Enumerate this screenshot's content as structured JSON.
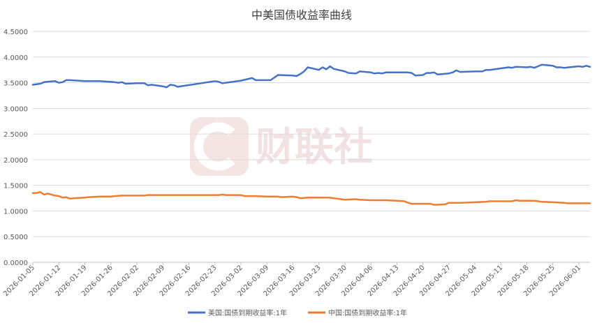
{
  "chart_data": {
    "type": "line",
    "title": "中美国债收益率曲线",
    "xlabel": "",
    "ylabel": "",
    "ylim": [
      0,
      4.5
    ],
    "yticks": [
      "0.0000",
      "0.5000",
      "1.0000",
      "1.5000",
      "2.0000",
      "2.5000",
      "3.0000",
      "3.5000",
      "4.0000",
      "4.5000"
    ],
    "xticks": [
      "2026-01-05",
      "2026-01-12",
      "2026-01-19",
      "2026-01-26",
      "2026-02-02",
      "2026-02-09",
      "2026-02-16",
      "2026-02-23",
      "2026-03-02",
      "2026-03-09",
      "2026-03-16",
      "2026-03-23",
      "2026-03-30",
      "2026-04-06",
      "2026-04-13",
      "2026-04-20",
      "2026-04-27",
      "2026-05-04",
      "2026-05-11",
      "2026-05-18",
      "2026-05-25",
      "2026-06-01"
    ],
    "legend_position": "bottom",
    "grid": true,
    "watermark": "财联社",
    "series": [
      {
        "name": "美国:国债到期收益率:1年",
        "color": "#4472C4",
        "points": [
          [
            "2026-01-05",
            3.46
          ],
          [
            "2026-01-06",
            3.47
          ],
          [
            "2026-01-07",
            3.48
          ],
          [
            "2026-01-08",
            3.51
          ],
          [
            "2026-01-09",
            3.52
          ],
          [
            "2026-01-11",
            3.53
          ],
          [
            "2026-01-12",
            3.5
          ],
          [
            "2026-01-13",
            3.51
          ],
          [
            "2026-01-14",
            3.55
          ],
          [
            "2026-01-15",
            3.55
          ],
          [
            "2026-01-19",
            3.53
          ],
          [
            "2026-01-23",
            3.53
          ],
          [
            "2026-01-27",
            3.51
          ],
          [
            "2026-01-28",
            3.5
          ],
          [
            "2026-01-29",
            3.51
          ],
          [
            "2026-01-30",
            3.48
          ],
          [
            "2026-02-02",
            3.49
          ],
          [
            "2026-02-04",
            3.49
          ],
          [
            "2026-02-05",
            3.45
          ],
          [
            "2026-02-06",
            3.46
          ],
          [
            "2026-02-09",
            3.43
          ],
          [
            "2026-02-10",
            3.41
          ],
          [
            "2026-02-11",
            3.46
          ],
          [
            "2026-02-12",
            3.45
          ],
          [
            "2026-02-13",
            3.42
          ],
          [
            "2026-02-23",
            3.53
          ],
          [
            "2026-02-24",
            3.52
          ],
          [
            "2026-02-25",
            3.49
          ],
          [
            "2026-02-26",
            3.5
          ],
          [
            "2026-03-02",
            3.54
          ],
          [
            "2026-03-05",
            3.59
          ],
          [
            "2026-03-06",
            3.55
          ],
          [
            "2026-03-09",
            3.55
          ],
          [
            "2026-03-10",
            3.55
          ],
          [
            "2026-03-12",
            3.65
          ],
          [
            "2026-03-16",
            3.64
          ],
          [
            "2026-03-17",
            3.63
          ],
          [
            "2026-03-18",
            3.67
          ],
          [
            "2026-03-19",
            3.72
          ],
          [
            "2026-03-20",
            3.8
          ],
          [
            "2026-03-23",
            3.75
          ],
          [
            "2026-03-24",
            3.8
          ],
          [
            "2026-03-25",
            3.76
          ],
          [
            "2026-03-26",
            3.82
          ],
          [
            "2026-03-27",
            3.77
          ],
          [
            "2026-03-30",
            3.72
          ],
          [
            "2026-03-31",
            3.69
          ],
          [
            "2026-04-02",
            3.68
          ],
          [
            "2026-04-03",
            3.72
          ],
          [
            "2026-04-06",
            3.7
          ],
          [
            "2026-04-07",
            3.68
          ],
          [
            "2026-04-08",
            3.69
          ],
          [
            "2026-04-09",
            3.68
          ],
          [
            "2026-04-10",
            3.7
          ],
          [
            "2026-04-16",
            3.7
          ],
          [
            "2026-04-17",
            3.69
          ],
          [
            "2026-04-18",
            3.64
          ],
          [
            "2026-04-20",
            3.65
          ],
          [
            "2026-04-21",
            3.69
          ],
          [
            "2026-04-22",
            3.69
          ],
          [
            "2026-04-23",
            3.7
          ],
          [
            "2026-04-24",
            3.66
          ],
          [
            "2026-04-27",
            3.68
          ],
          [
            "2026-04-28",
            3.7
          ],
          [
            "2026-04-29",
            3.74
          ],
          [
            "2026-04-30",
            3.71
          ],
          [
            "2026-05-04",
            3.72
          ],
          [
            "2026-05-06",
            3.72
          ],
          [
            "2026-05-07",
            3.75
          ],
          [
            "2026-05-08",
            3.75
          ],
          [
            "2026-05-11",
            3.78
          ],
          [
            "2026-05-13",
            3.8
          ],
          [
            "2026-05-14",
            3.79
          ],
          [
            "2026-05-15",
            3.81
          ],
          [
            "2026-05-18",
            3.8
          ],
          [
            "2026-05-19",
            3.81
          ],
          [
            "2026-05-20",
            3.79
          ],
          [
            "2026-05-21",
            3.82
          ],
          [
            "2026-05-22",
            3.85
          ],
          [
            "2026-05-25",
            3.83
          ],
          [
            "2026-05-26",
            3.8
          ],
          [
            "2026-05-27",
            3.8
          ],
          [
            "2026-05-28",
            3.79
          ],
          [
            "2026-06-01",
            3.82
          ],
          [
            "2026-06-02",
            3.81
          ],
          [
            "2026-06-03",
            3.83
          ],
          [
            "2026-06-04",
            3.81
          ]
        ]
      },
      {
        "name": "中国:国债到期收益率:1年",
        "color": "#ED7D31",
        "points": [
          [
            "2026-01-05",
            1.35
          ],
          [
            "2026-01-06",
            1.35
          ],
          [
            "2026-01-07",
            1.37
          ],
          [
            "2026-01-08",
            1.32
          ],
          [
            "2026-01-09",
            1.34
          ],
          [
            "2026-01-11",
            1.3
          ],
          [
            "2026-01-12",
            1.29
          ],
          [
            "2026-01-13",
            1.26
          ],
          [
            "2026-01-14",
            1.27
          ],
          [
            "2026-01-15",
            1.24
          ],
          [
            "2026-01-16",
            1.25
          ],
          [
            "2026-01-19",
            1.26
          ],
          [
            "2026-01-20",
            1.27
          ],
          [
            "2026-01-23",
            1.28
          ],
          [
            "2026-01-26",
            1.28
          ],
          [
            "2026-01-27",
            1.29
          ],
          [
            "2026-01-29",
            1.3
          ],
          [
            "2026-02-04",
            1.3
          ],
          [
            "2026-02-05",
            1.31
          ],
          [
            "2026-02-24",
            1.31
          ],
          [
            "2026-02-25",
            1.32
          ],
          [
            "2026-02-26",
            1.31
          ],
          [
            "2026-03-02",
            1.31
          ],
          [
            "2026-03-03",
            1.29
          ],
          [
            "2026-03-06",
            1.29
          ],
          [
            "2026-03-09",
            1.28
          ],
          [
            "2026-03-12",
            1.28
          ],
          [
            "2026-03-13",
            1.27
          ],
          [
            "2026-03-16",
            1.28
          ],
          [
            "2026-03-17",
            1.27
          ],
          [
            "2026-03-18",
            1.25
          ],
          [
            "2026-03-20",
            1.26
          ],
          [
            "2026-03-26",
            1.26
          ],
          [
            "2026-03-27",
            1.25
          ],
          [
            "2026-03-30",
            1.22
          ],
          [
            "2026-04-02",
            1.23
          ],
          [
            "2026-04-03",
            1.22
          ],
          [
            "2026-04-06",
            1.21
          ],
          [
            "2026-04-10",
            1.21
          ],
          [
            "2026-04-13",
            1.2
          ],
          [
            "2026-04-15",
            1.19
          ],
          [
            "2026-04-16",
            1.16
          ],
          [
            "2026-04-17",
            1.14
          ],
          [
            "2026-04-22",
            1.14
          ],
          [
            "2026-04-23",
            1.12
          ],
          [
            "2026-04-26",
            1.13
          ],
          [
            "2026-04-27",
            1.16
          ],
          [
            "2026-04-30",
            1.16
          ],
          [
            "2026-05-04",
            1.17
          ],
          [
            "2026-05-07",
            1.18
          ],
          [
            "2026-05-08",
            1.19
          ],
          [
            "2026-05-14",
            1.19
          ],
          [
            "2026-05-15",
            1.21
          ],
          [
            "2026-05-16",
            1.2
          ],
          [
            "2026-05-20",
            1.2
          ],
          [
            "2026-05-22",
            1.18
          ],
          [
            "2026-05-25",
            1.17
          ],
          [
            "2026-05-28",
            1.16
          ],
          [
            "2026-05-29",
            1.15
          ],
          [
            "2026-06-04",
            1.15
          ]
        ]
      }
    ]
  }
}
